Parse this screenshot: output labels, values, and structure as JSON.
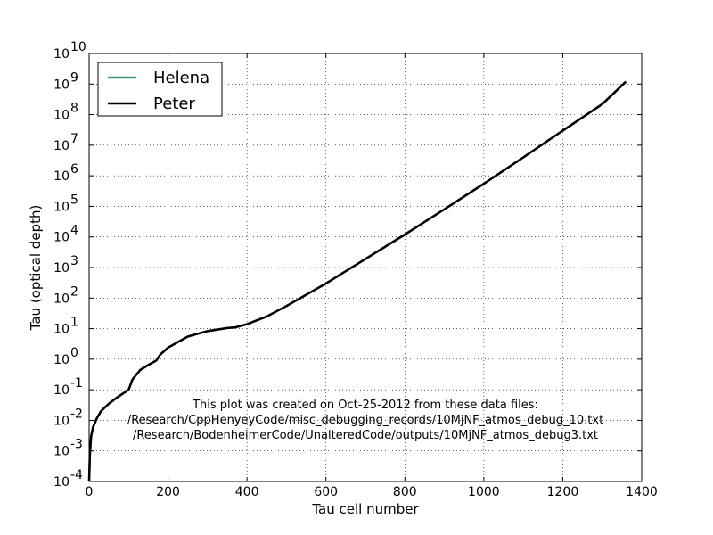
{
  "chart_data": {
    "type": "line",
    "title": "",
    "xlabel": "Tau cell number",
    "ylabel": "Tau (optical depth)",
    "xlim": [
      0,
      1400
    ],
    "ylim_exponent": [
      -4,
      10
    ],
    "yscale": "log",
    "grid": true,
    "legend_position": "upper-left",
    "x_ticks": [
      "0",
      "200",
      "400",
      "600",
      "800",
      "1000",
      "1200",
      "1400"
    ],
    "y_tick_base": "10",
    "y_tick_exponents": [
      "-4",
      "-3",
      "-2",
      "-1",
      "0",
      "1",
      "2",
      "3",
      "4",
      "5",
      "6",
      "7",
      "8",
      "9",
      "10"
    ],
    "annotation": [
      "This plot was created on Oct-25-2012 from these data files:",
      "/Research/CppHenyeyCode/misc_debugging_records/10MjNF_atmos_debug_10.txt",
      "/Research/BodenheimerCode/UnalteredCode/outputs/10MjNF_atmos_debug3.txt"
    ],
    "series": [
      {
        "name": "Helena",
        "color": "#3a9a7a",
        "x": [
          0,
          2,
          5,
          10,
          20,
          30,
          50,
          70,
          100,
          110,
          130,
          150,
          170,
          180,
          200,
          250,
          300,
          350,
          370,
          400,
          450,
          500,
          600,
          700,
          800,
          900,
          1000,
          1100,
          1200,
          1300,
          1360
        ],
        "y": [
          0.0001,
          0.0008,
          0.003,
          0.006,
          0.012,
          0.02,
          0.035,
          0.055,
          0.1,
          0.22,
          0.45,
          0.65,
          0.9,
          1.4,
          2.4,
          5.5,
          8.3,
          10.5,
          11,
          14,
          25,
          55,
          300,
          1900,
          12000,
          80000,
          550000,
          4000000,
          30000000,
          220000000,
          1200000000
        ]
      },
      {
        "name": "Peter",
        "color": "#000000",
        "x": [
          0,
          2,
          5,
          10,
          20,
          30,
          50,
          70,
          100,
          110,
          130,
          150,
          170,
          180,
          200,
          250,
          300,
          350,
          370,
          400,
          450,
          500,
          600,
          700,
          800,
          900,
          1000,
          1100,
          1200,
          1300,
          1360
        ],
        "y": [
          0.0001,
          0.0008,
          0.003,
          0.006,
          0.012,
          0.02,
          0.035,
          0.055,
          0.1,
          0.22,
          0.45,
          0.65,
          0.9,
          1.4,
          2.4,
          5.5,
          8.3,
          10.5,
          11,
          14,
          25,
          55,
          300,
          1900,
          12000,
          80000,
          550000,
          4000000,
          30000000,
          220000000,
          1200000000
        ]
      }
    ]
  }
}
